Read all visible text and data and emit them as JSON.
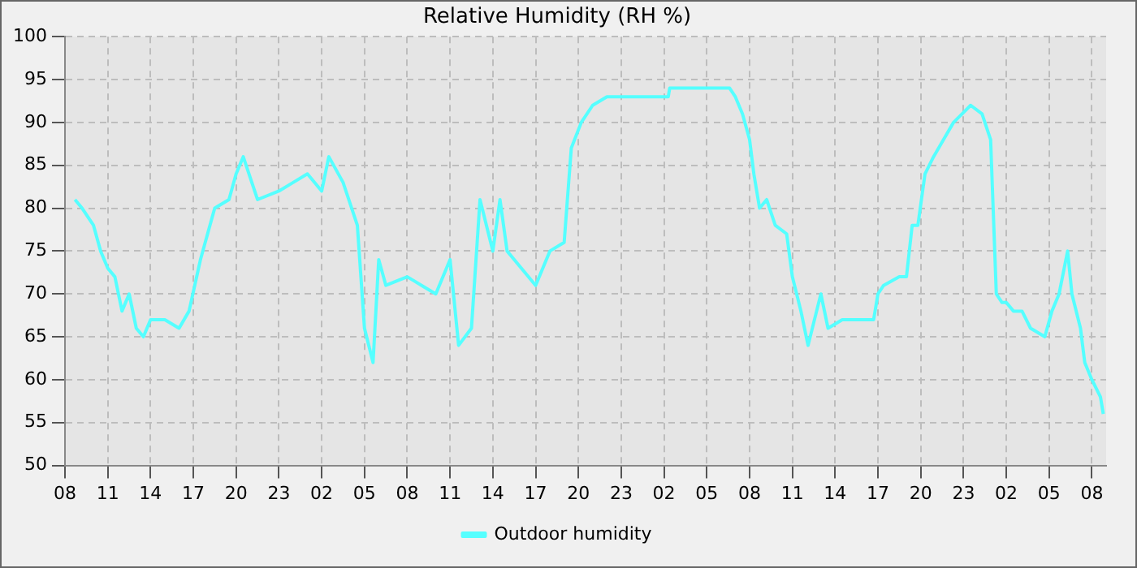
{
  "chart_data": {
    "type": "line",
    "title": "Relative Humidity (RH %)",
    "x": [
      "--01-01T08:42",
      "--01-01T09:12",
      "--01-01T10:00",
      "--01-01T10:30",
      "--01-01T11:00",
      "--01-01T11:30",
      "--01-01T12:00",
      "--01-01T12:30",
      "--01-01T13:00",
      "--01-01T13:30",
      "--01-01T14:00",
      "--01-01T15:00",
      "--01-01T16:00",
      "--01-01T16:42",
      "--01-01T17:30",
      "--01-01T18:30",
      "--01-01T19:30",
      "--01-01T20:00",
      "--01-01T20:30",
      "--01-01T21:30",
      "--01-01T23:00",
      "--01-02T00:00",
      "--01-02T01:00",
      "--01-02T02:00",
      "--01-02T02:30",
      "--01-02T03:30",
      "--01-02T04:30",
      "--01-02T05:00",
      "--01-02T05:36",
      "--01-02T06:00",
      "--01-02T06:30",
      "--01-02T08:00",
      "--01-02T09:00",
      "--01-02T10:00",
      "--01-02T11:00",
      "--01-02T11:36",
      "--01-02T12:30",
      "--01-02T13:06",
      "--01-02T14:00",
      "--01-02T14:30",
      "--01-02T15:00",
      "--01-02T15:30",
      "--01-02T17:00",
      "--01-02T18:00",
      "--01-02T19:00",
      "--01-02T19:30",
      "--01-02T20:12",
      "--01-02T21:00",
      "--01-02T22:00",
      "--01-03T02:18",
      "--01-03T02:24",
      "--01-03T06:36",
      "--01-03T07:00",
      "--01-03T07:30",
      "--01-03T08:00",
      "--01-03T08:18",
      "--01-03T08:42",
      "--01-03T09:12",
      "--01-03T09:48",
      "--01-03T10:36",
      "--01-03T11:00",
      "--01-03T11:36",
      "--01-03T12:06",
      "--01-03T12:42",
      "--01-03T13:00",
      "--01-03T13:30",
      "--01-03T14:30",
      "--01-03T16:42",
      "--01-03T17:00",
      "--01-03T17:24",
      "--01-03T18:30",
      "--01-03T19:00",
      "--01-03T19:24",
      "--01-03T19:48",
      "--01-03T20:18",
      "--01-03T20:54",
      "--01-03T21:36",
      "--01-03T22:18",
      "--01-03T22:54",
      "--01-03T23:30",
      "--01-04T00:18",
      "--01-04T00:54",
      "--01-04T01:18",
      "--01-04T01:42",
      "--01-04T02:00",
      "--01-04T02:30",
      "--01-04T03:06",
      "--01-04T03:42",
      "--01-04T04:42",
      "--01-04T05:12",
      "--01-04T05:42",
      "--01-04T06:18",
      "--01-04T06:36",
      "--01-04T07:12",
      "--01-04T07:30",
      "--01-04T08:00",
      "--01-04T08:36",
      "--01-04T08:48"
    ],
    "series": [
      {
        "name": "Outdoor humidity",
        "color": "#55ffff",
        "values": [
          81,
          80,
          78,
          75,
          73,
          72,
          68,
          70,
          66,
          65,
          67,
          67,
          66,
          68,
          74,
          80,
          81,
          84,
          86,
          81,
          82,
          83,
          84,
          82,
          86,
          83,
          78,
          66,
          62,
          74,
          71,
          72,
          71,
          70,
          74,
          64,
          66,
          81,
          75,
          81,
          75,
          74,
          71,
          75,
          76,
          87,
          90,
          92,
          93,
          93,
          94,
          94,
          93,
          91,
          88,
          84,
          80,
          81,
          78,
          77,
          72,
          68,
          64,
          68,
          70,
          66,
          67,
          67,
          70,
          71,
          72,
          72,
          78,
          78,
          84,
          86,
          88,
          90,
          91,
          92,
          91,
          88,
          70,
          69,
          69,
          68,
          68,
          66,
          65,
          68,
          70,
          75,
          70,
          66,
          62,
          60,
          58,
          56
        ]
      }
    ],
    "xlim": [
      "--01-01T08:00",
      "--01-04T09:00"
    ],
    "xticks": [
      {
        "value": "--01-01T08:00",
        "label": "08"
      },
      {
        "value": "--01-01T11:00",
        "label": "11"
      },
      {
        "value": "--01-01T14:00",
        "label": "14"
      },
      {
        "value": "--01-01T17:00",
        "label": "17"
      },
      {
        "value": "--01-01T20:00",
        "label": "20"
      },
      {
        "value": "--01-01T23:00",
        "label": "23"
      },
      {
        "value": "--01-02T02:00",
        "label": "02"
      },
      {
        "value": "--01-02T05:00",
        "label": "05"
      },
      {
        "value": "--01-02T08:00",
        "label": "08"
      },
      {
        "value": "--01-02T11:00",
        "label": "11"
      },
      {
        "value": "--01-02T14:00",
        "label": "14"
      },
      {
        "value": "--01-02T17:00",
        "label": "17"
      },
      {
        "value": "--01-02T20:00",
        "label": "20"
      },
      {
        "value": "--01-02T23:00",
        "label": "23"
      },
      {
        "value": "--01-03T02:00",
        "label": "02"
      },
      {
        "value": "--01-03T05:00",
        "label": "05"
      },
      {
        "value": "--01-03T08:00",
        "label": "08"
      },
      {
        "value": "--01-03T11:00",
        "label": "11"
      },
      {
        "value": "--01-03T14:00",
        "label": "14"
      },
      {
        "value": "--01-03T17:00",
        "label": "17"
      },
      {
        "value": "--01-03T20:00",
        "label": "20"
      },
      {
        "value": "--01-03T23:00",
        "label": "23"
      },
      {
        "value": "--01-04T02:00",
        "label": "02"
      },
      {
        "value": "--01-04T05:00",
        "label": "05"
      },
      {
        "value": "--01-04T08:00",
        "label": "08"
      }
    ],
    "ylim": [
      50,
      100
    ],
    "yticks": [
      50,
      55,
      60,
      65,
      70,
      75,
      80,
      85,
      90,
      95,
      100
    ],
    "grid": true,
    "legend": "bottom",
    "marker": "none",
    "line_style": "solid"
  }
}
